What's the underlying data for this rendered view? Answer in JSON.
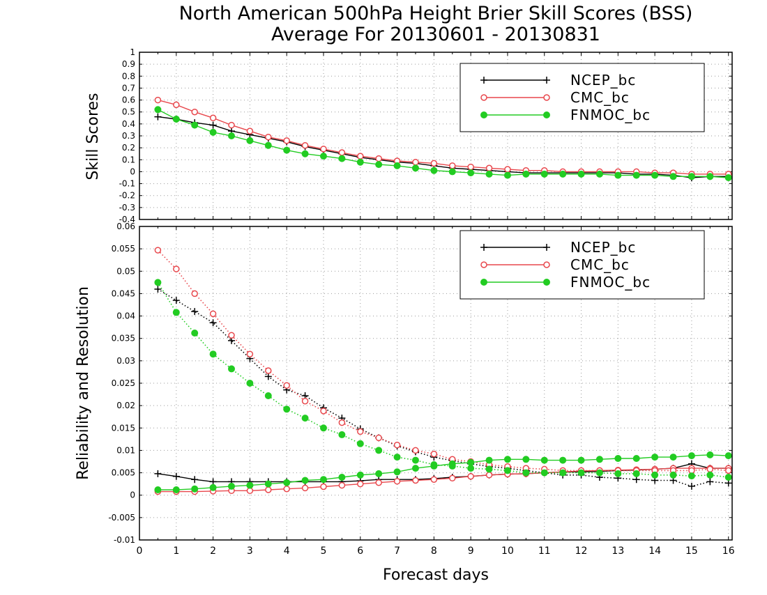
{
  "title": {
    "line1": "North American 500hPa Height Brier Skill Scores (BSS)",
    "line2": "Average For 20130601 - 20130831"
  },
  "colors": {
    "ncep": "#000000",
    "cmc": "#e8474c",
    "fnmoc": "#22cc22",
    "grid": "#9a9a9a",
    "frame": "#000000"
  },
  "chart_data": [
    {
      "type": "line",
      "panel": "top",
      "ylabel": "Skill Scores",
      "xlabel": "",
      "xlim": [
        0,
        16.1
      ],
      "ylim": [
        -0.4,
        1
      ],
      "grid": true,
      "legend_position": "top-right",
      "y_ticks": [
        "-0.4",
        "-0.3",
        "-0.2",
        "-0.1",
        "0",
        "0.1",
        "0.2",
        "0.3",
        "0.4",
        "0.5",
        "0.6",
        "0.7",
        "0.8",
        "0.9",
        "1"
      ],
      "x": [
        0.5,
        1,
        1.5,
        2,
        2.5,
        3,
        3.5,
        4,
        4.5,
        5,
        5.5,
        6,
        6.5,
        7,
        7.5,
        8,
        8.5,
        9,
        9.5,
        10,
        10.5,
        11,
        11.5,
        12,
        12.5,
        13,
        13.5,
        14,
        14.5,
        15,
        15.5,
        16
      ],
      "series": [
        {
          "name": "NCEP_bc",
          "key": "ncep",
          "marker": "plus",
          "style": "solid",
          "values": [
            0.46,
            0.44,
            0.41,
            0.39,
            0.34,
            0.31,
            0.28,
            0.25,
            0.21,
            0.18,
            0.15,
            0.12,
            0.1,
            0.08,
            0.07,
            0.05,
            0.03,
            0.02,
            0.01,
            0.0,
            -0.01,
            -0.01,
            -0.01,
            -0.01,
            -0.01,
            -0.01,
            -0.02,
            -0.02,
            -0.03,
            -0.05,
            -0.04,
            -0.04
          ]
        },
        {
          "name": "CMC_bc",
          "key": "cmc",
          "marker": "circle-open",
          "style": "solid",
          "values": [
            0.6,
            0.56,
            0.5,
            0.45,
            0.39,
            0.34,
            0.29,
            0.26,
            0.22,
            0.19,
            0.16,
            0.13,
            0.11,
            0.09,
            0.08,
            0.07,
            0.05,
            0.04,
            0.03,
            0.02,
            0.01,
            0.01,
            0.0,
            0.0,
            0.0,
            0.0,
            0.0,
            -0.01,
            -0.01,
            -0.02,
            -0.02,
            -0.02
          ]
        },
        {
          "name": "FNMOC_bc",
          "key": "fnmoc",
          "marker": "circle-filled",
          "style": "solid",
          "values": [
            0.52,
            0.44,
            0.39,
            0.33,
            0.3,
            0.26,
            0.22,
            0.18,
            0.15,
            0.13,
            0.11,
            0.08,
            0.06,
            0.05,
            0.03,
            0.01,
            0.0,
            -0.01,
            -0.02,
            -0.03,
            -0.02,
            -0.02,
            -0.02,
            -0.02,
            -0.02,
            -0.03,
            -0.03,
            -0.03,
            -0.04,
            -0.04,
            -0.04,
            -0.05
          ]
        }
      ]
    },
    {
      "type": "line",
      "panel": "bottom",
      "ylabel": "Reliability and Resolution",
      "xlabel": "Forecast days",
      "xlim": [
        0,
        16.1
      ],
      "ylim": [
        -0.01,
        0.06
      ],
      "grid": true,
      "legend_position": "top-right",
      "y_ticks": [
        "-0.01",
        "-0.005",
        "0",
        "0.005",
        "0.01",
        "0.015",
        "0.02",
        "0.025",
        "0.03",
        "0.035",
        "0.04",
        "0.045",
        "0.05",
        "0.055",
        "0.06"
      ],
      "x_ticks": [
        "0",
        "1",
        "2",
        "3",
        "4",
        "5",
        "6",
        "7",
        "8",
        "9",
        "10",
        "11",
        "12",
        "13",
        "14",
        "15",
        "16"
      ],
      "x": [
        0.5,
        1,
        1.5,
        2,
        2.5,
        3,
        3.5,
        4,
        4.5,
        5,
        5.5,
        6,
        6.5,
        7,
        7.5,
        8,
        8.5,
        9,
        9.5,
        10,
        10.5,
        11,
        11.5,
        12,
        12.5,
        13,
        13.5,
        14,
        14.5,
        15,
        15.5,
        16
      ],
      "series": [
        {
          "name": "NCEP_bc",
          "key": "ncep",
          "marker": "plus",
          "style": "solid",
          "component": "reliability",
          "values": [
            0.0048,
            0.0042,
            0.0035,
            0.003,
            0.003,
            0.003,
            0.003,
            0.003,
            0.003,
            0.003,
            0.003,
            0.0032,
            0.0035,
            0.0035,
            0.0035,
            0.0037,
            0.004,
            0.0042,
            0.0045,
            0.0047,
            0.0048,
            0.005,
            0.0052,
            0.0052,
            0.0053,
            0.0055,
            0.0056,
            0.0058,
            0.006,
            0.007,
            0.006,
            0.006
          ]
        },
        {
          "name": "NCEP_bc",
          "key": "ncep",
          "marker": "plus",
          "style": "dotted",
          "component": "resolution",
          "values": [
            0.046,
            0.0435,
            0.041,
            0.0385,
            0.0345,
            0.0305,
            0.0265,
            0.0235,
            0.0222,
            0.0195,
            0.0172,
            0.0148,
            0.0128,
            0.011,
            0.0097,
            0.0085,
            0.0077,
            0.007,
            0.0064,
            0.006,
            0.0055,
            0.005,
            0.0045,
            0.0045,
            0.004,
            0.0038,
            0.0035,
            0.0033,
            0.0033,
            0.002,
            0.003,
            0.0027
          ]
        },
        {
          "name": "CMC_bc",
          "key": "cmc",
          "marker": "circle-open",
          "style": "solid",
          "component": "reliability",
          "values": [
            0.0008,
            0.0008,
            0.0008,
            0.0009,
            0.001,
            0.001,
            0.0012,
            0.0014,
            0.0016,
            0.0019,
            0.0022,
            0.0025,
            0.0028,
            0.0031,
            0.0033,
            0.0035,
            0.0038,
            0.0042,
            0.0045,
            0.0047,
            0.0048,
            0.005,
            0.0052,
            0.0054,
            0.0055,
            0.0056,
            0.0057,
            0.0058,
            0.006,
            0.006,
            0.006,
            0.006
          ]
        },
        {
          "name": "CMC_bc",
          "key": "cmc",
          "marker": "circle-open",
          "style": "dotted",
          "component": "resolution",
          "values": [
            0.0547,
            0.0505,
            0.045,
            0.0405,
            0.0357,
            0.0315,
            0.0278,
            0.0245,
            0.021,
            0.0188,
            0.0162,
            0.0142,
            0.0128,
            0.0112,
            0.01,
            0.0092,
            0.008,
            0.0075,
            0.0068,
            0.0064,
            0.006,
            0.0058,
            0.0055,
            0.0055,
            0.0055,
            0.0055,
            0.0055,
            0.0055,
            0.0055,
            0.0055,
            0.0058,
            0.0055
          ]
        },
        {
          "name": "FNMOC_bc",
          "key": "fnmoc",
          "marker": "circle-filled",
          "style": "solid",
          "component": "reliability",
          "values": [
            0.0012,
            0.0012,
            0.0014,
            0.0017,
            0.002,
            0.0022,
            0.0025,
            0.0028,
            0.0033,
            0.0035,
            0.004,
            0.0045,
            0.0048,
            0.0052,
            0.006,
            0.0065,
            0.007,
            0.0073,
            0.0078,
            0.008,
            0.008,
            0.0078,
            0.0078,
            0.0078,
            0.008,
            0.0082,
            0.0082,
            0.0085,
            0.0085,
            0.0088,
            0.009,
            0.0088
          ]
        },
        {
          "name": "FNMOC_bc",
          "key": "fnmoc",
          "marker": "circle-filled",
          "style": "dotted",
          "component": "resolution",
          "values": [
            0.0475,
            0.0408,
            0.0362,
            0.0315,
            0.0282,
            0.025,
            0.0222,
            0.0192,
            0.0172,
            0.015,
            0.0135,
            0.0115,
            0.01,
            0.0085,
            0.0078,
            0.0068,
            0.0065,
            0.006,
            0.0058,
            0.0055,
            0.005,
            0.005,
            0.005,
            0.005,
            0.005,
            0.0048,
            0.0048,
            0.0045,
            0.0045,
            0.0043,
            0.0045,
            0.004
          ]
        }
      ]
    }
  ],
  "legend": {
    "entries": [
      {
        "label": "NCEP_bc",
        "key": "ncep",
        "marker": "plus"
      },
      {
        "label": "CMC_bc",
        "key": "cmc",
        "marker": "circle-open"
      },
      {
        "label": "FNMOC_bc",
        "key": "fnmoc",
        "marker": "circle-filled"
      }
    ]
  }
}
